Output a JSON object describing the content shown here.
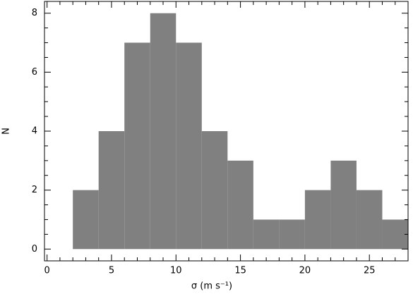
{
  "chart_data": {
    "type": "histogram",
    "x_label": "σ (m s⁻¹)",
    "y_label": "N",
    "bins": [
      0,
      2,
      4,
      6,
      8,
      10,
      12,
      14,
      16,
      18,
      20,
      22,
      24,
      26,
      28
    ],
    "values": [
      0,
      2,
      4,
      7,
      8,
      7,
      4,
      3,
      1,
      1,
      2,
      3,
      2,
      1
    ],
    "color": "#808080",
    "xlim": [
      -0.2,
      28
    ],
    "xticks": [
      0,
      5,
      10,
      15,
      20,
      25
    ],
    "ylim": [
      -0.4,
      8.4
    ],
    "yticks": [
      0,
      2,
      4,
      6,
      8
    ]
  }
}
